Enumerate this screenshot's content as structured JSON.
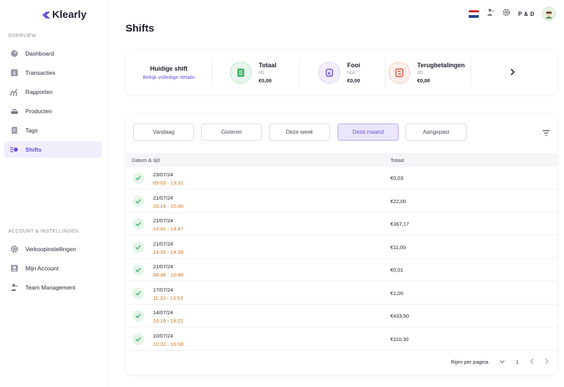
{
  "brand": {
    "name": "Klearly"
  },
  "sidebar": {
    "overview_label": "OVERVIEW",
    "items": [
      {
        "label": "Dashboard",
        "icon": "dashboard-icon"
      },
      {
        "label": "Transacties",
        "icon": "transactions-icon"
      },
      {
        "label": "Rapporten",
        "icon": "reports-icon"
      },
      {
        "label": "Producten",
        "icon": "products-icon"
      },
      {
        "label": "Tags",
        "icon": "tags-icon"
      },
      {
        "label": "Shifts",
        "icon": "shifts-icon",
        "active": true
      }
    ],
    "account_label": "ACCOUNT & INSTELLINGEN",
    "account_items": [
      {
        "label": "Verkoopinstellingen",
        "icon": "gear-icon"
      },
      {
        "label": "Mijn Account",
        "icon": "account-icon"
      },
      {
        "label": "Team Management",
        "icon": "team-icon"
      }
    ]
  },
  "topbar": {
    "user_name": "P & D",
    "language": "nl"
  },
  "page": {
    "title": "Shifts"
  },
  "summary": {
    "current_shift_title": "Huidige shift",
    "current_shift_link": "Bekijk volledige details",
    "stats": [
      {
        "label": "Totaal",
        "sub": "#0",
        "value": "€0,00",
        "icon": "total-icon",
        "color": "#3fb76a"
      },
      {
        "label": "Fooi",
        "sub": "N/A",
        "value": "€0,00",
        "icon": "tip-icon",
        "color": "#6a4ed8"
      },
      {
        "label": "Terugbetalingen",
        "sub": "#0",
        "value": "€0,00",
        "icon": "refund-icon",
        "color": "#e0503a"
      }
    ]
  },
  "filters": {
    "buttons": [
      "Vandaag",
      "Gisteren",
      "Deze week",
      "Deze maand",
      "Aangepast"
    ],
    "active": "Deze maand"
  },
  "table": {
    "columns": [
      "Datum & tijd",
      "Totaal"
    ],
    "rows": [
      {
        "date": "23/07/24",
        "time": "09:03 - 13:31",
        "total": "€0,03"
      },
      {
        "date": "21/07/24",
        "time": "15:19 - 15:30",
        "total": "€22,00"
      },
      {
        "date": "21/07/24",
        "time": "14:41 - 14:47",
        "total": "€367,17"
      },
      {
        "date": "21/07/24",
        "time": "14:35 - 14:38",
        "total": "€11,00"
      },
      {
        "date": "21/07/24",
        "time": "08:48 - 10:48",
        "total": "€0,01"
      },
      {
        "date": "17/07/24",
        "time": "11:33 - 13:53",
        "total": "€1,00"
      },
      {
        "date": "14/07/24",
        "time": "16:18 - 18:22",
        "total": "€433,50"
      },
      {
        "date": "10/07/24",
        "time": "10:32 - 16:08",
        "total": "€110,30"
      }
    ]
  },
  "pagination": {
    "rows_per_page_label": "Rijen per pagina",
    "page": "1"
  },
  "colors": {
    "accent": "#6a4ed8",
    "time": "#d4751e",
    "check": "#3fb76a"
  }
}
